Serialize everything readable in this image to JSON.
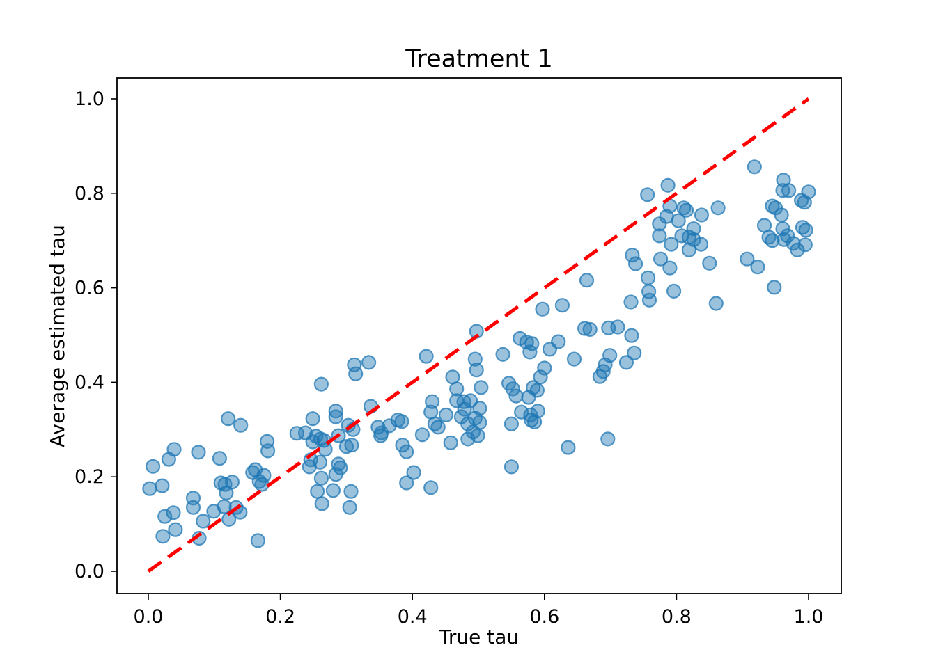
{
  "chart_data": {
    "type": "scatter",
    "title": "Treatment 1",
    "xlabel": "True tau",
    "ylabel": "Average estimated tau",
    "xlim": [
      -0.05,
      1.05
    ],
    "ylim": [
      -0.05,
      1.045
    ],
    "grid": false,
    "legend": "none",
    "x_ticks": [
      0.0,
      0.2,
      0.4,
      0.6,
      0.8,
      1.0
    ],
    "x_tick_labels": [
      "0.0",
      "0.2",
      "0.4",
      "0.6",
      "0.8",
      "1.0"
    ],
    "y_ticks": [
      0.0,
      0.2,
      0.4,
      0.6,
      0.8,
      1.0
    ],
    "y_tick_labels": [
      "0.0",
      "0.2",
      "0.4",
      "0.6",
      "0.8",
      "1.0"
    ],
    "reference_line": {
      "name": "identity-line",
      "x": [
        0,
        1
      ],
      "y": [
        0,
        1
      ],
      "style": "dashed",
      "color": "#ff0000"
    },
    "series": [
      {
        "name": "average-estimated-tau",
        "marker": "circle",
        "color": "#1f77b4",
        "alpha": 0.5,
        "points": [
          [
            0.121,
            0.323
          ],
          [
            0.14,
            0.309
          ],
          [
            0.007,
            0.222
          ],
          [
            0.039,
            0.258
          ],
          [
            0.031,
            0.237
          ],
          [
            0.076,
            0.252
          ],
          [
            0.108,
            0.239
          ],
          [
            0.18,
            0.275
          ],
          [
            0.181,
            0.255
          ],
          [
            0.158,
            0.209
          ],
          [
            0.162,
            0.215
          ],
          [
            0.175,
            0.203
          ],
          [
            0.002,
            0.175
          ],
          [
            0.021,
            0.181
          ],
          [
            0.11,
            0.187
          ],
          [
            0.116,
            0.184
          ],
          [
            0.127,
            0.189
          ],
          [
            0.118,
            0.166
          ],
          [
            0.172,
            0.184
          ],
          [
            0.168,
            0.19
          ],
          [
            0.068,
            0.155
          ],
          [
            0.068,
            0.135
          ],
          [
            0.099,
            0.127
          ],
          [
            0.115,
            0.137
          ],
          [
            0.133,
            0.135
          ],
          [
            0.139,
            0.125
          ],
          [
            0.122,
            0.11
          ],
          [
            0.025,
            0.116
          ],
          [
            0.038,
            0.124
          ],
          [
            0.083,
            0.106
          ],
          [
            0.041,
            0.088
          ],
          [
            0.022,
            0.074
          ],
          [
            0.077,
            0.07
          ],
          [
            0.166,
            0.065
          ],
          [
            0.249,
            0.323
          ],
          [
            0.284,
            0.327
          ],
          [
            0.303,
            0.309
          ],
          [
            0.31,
            0.3
          ],
          [
            0.225,
            0.292
          ],
          [
            0.238,
            0.293
          ],
          [
            0.254,
            0.286
          ],
          [
            0.261,
            0.28
          ],
          [
            0.266,
            0.277
          ],
          [
            0.249,
            0.274
          ],
          [
            0.288,
            0.287
          ],
          [
            0.3,
            0.264
          ],
          [
            0.308,
            0.267
          ],
          [
            0.268,
            0.258
          ],
          [
            0.246,
            0.236
          ],
          [
            0.26,
            0.231
          ],
          [
            0.244,
            0.221
          ],
          [
            0.288,
            0.227
          ],
          [
            0.291,
            0.219
          ],
          [
            0.284,
            0.205
          ],
          [
            0.262,
            0.197
          ],
          [
            0.256,
            0.169
          ],
          [
            0.28,
            0.171
          ],
          [
            0.307,
            0.169
          ],
          [
            0.263,
            0.143
          ],
          [
            0.305,
            0.135
          ],
          [
            0.348,
            0.305
          ],
          [
            0.353,
            0.293
          ],
          [
            0.352,
            0.287
          ],
          [
            0.365,
            0.308
          ],
          [
            0.378,
            0.32
          ],
          [
            0.384,
            0.317
          ],
          [
            0.415,
            0.289
          ],
          [
            0.385,
            0.267
          ],
          [
            0.391,
            0.253
          ],
          [
            0.434,
            0.312
          ],
          [
            0.439,
            0.305
          ],
          [
            0.458,
            0.272
          ],
          [
            0.402,
            0.209
          ],
          [
            0.391,
            0.187
          ],
          [
            0.428,
            0.177
          ],
          [
            0.451,
            0.331
          ],
          [
            0.467,
            0.361
          ],
          [
            0.478,
            0.359
          ],
          [
            0.488,
            0.361
          ],
          [
            0.479,
            0.343
          ],
          [
            0.502,
            0.345
          ],
          [
            0.474,
            0.327
          ],
          [
            0.495,
            0.324
          ],
          [
            0.502,
            0.315
          ],
          [
            0.484,
            0.312
          ],
          [
            0.492,
            0.295
          ],
          [
            0.499,
            0.287
          ],
          [
            0.484,
            0.28
          ],
          [
            0.55,
            0.312
          ],
          [
            0.58,
            0.32
          ],
          [
            0.585,
            0.316
          ],
          [
            0.636,
            0.262
          ],
          [
            0.696,
            0.28
          ],
          [
            0.55,
            0.221
          ],
          [
            0.262,
            0.396
          ],
          [
            0.312,
            0.437
          ],
          [
            0.314,
            0.418
          ],
          [
            0.334,
            0.442
          ],
          [
            0.284,
            0.339
          ],
          [
            0.337,
            0.349
          ],
          [
            0.421,
            0.455
          ],
          [
            0.43,
            0.359
          ],
          [
            0.428,
            0.337
          ],
          [
            0.461,
            0.411
          ],
          [
            0.467,
            0.386
          ],
          [
            0.497,
            0.508
          ],
          [
            0.495,
            0.449
          ],
          [
            0.497,
            0.426
          ],
          [
            0.733,
            0.669
          ],
          [
            0.738,
            0.651
          ],
          [
            0.757,
            0.621
          ],
          [
            0.758,
            0.592
          ],
          [
            0.759,
            0.574
          ],
          [
            0.731,
            0.57
          ],
          [
            0.664,
            0.616
          ],
          [
            0.597,
            0.555
          ],
          [
            0.627,
            0.563
          ],
          [
            0.661,
            0.514
          ],
          [
            0.669,
            0.512
          ],
          [
            0.697,
            0.515
          ],
          [
            0.711,
            0.517
          ],
          [
            0.732,
            0.499
          ],
          [
            0.563,
            0.493
          ],
          [
            0.573,
            0.485
          ],
          [
            0.581,
            0.482
          ],
          [
            0.578,
            0.464
          ],
          [
            0.537,
            0.459
          ],
          [
            0.608,
            0.47
          ],
          [
            0.621,
            0.486
          ],
          [
            0.645,
            0.449
          ],
          [
            0.699,
            0.457
          ],
          [
            0.692,
            0.437
          ],
          [
            0.689,
            0.423
          ],
          [
            0.684,
            0.412
          ],
          [
            0.724,
            0.442
          ],
          [
            0.736,
            0.462
          ],
          [
            0.6,
            0.43
          ],
          [
            0.594,
            0.411
          ],
          [
            0.504,
            0.389
          ],
          [
            0.546,
            0.398
          ],
          [
            0.552,
            0.386
          ],
          [
            0.557,
            0.371
          ],
          [
            0.583,
            0.389
          ],
          [
            0.589,
            0.383
          ],
          [
            0.576,
            0.368
          ],
          [
            0.565,
            0.337
          ],
          [
            0.579,
            0.331
          ],
          [
            0.59,
            0.339
          ],
          [
            0.776,
            0.661
          ],
          [
            0.79,
            0.642
          ],
          [
            0.796,
            0.593
          ],
          [
            0.85,
            0.652
          ],
          [
            0.907,
            0.661
          ],
          [
            0.923,
            0.644
          ],
          [
            0.948,
            0.601
          ],
          [
            0.86,
            0.567
          ],
          [
            0.756,
            0.797
          ],
          [
            0.918,
            0.856
          ],
          [
            0.787,
            0.817
          ],
          [
            0.962,
            0.828
          ],
          [
            0.961,
            0.806
          ],
          [
            0.97,
            0.806
          ],
          [
            1.0,
            0.803
          ],
          [
            0.989,
            0.785
          ],
          [
            0.994,
            0.781
          ],
          [
            0.79,
            0.773
          ],
          [
            0.945,
            0.773
          ],
          [
            0.95,
            0.769
          ],
          [
            0.959,
            0.754
          ],
          [
            0.811,
            0.769
          ],
          [
            0.815,
            0.764
          ],
          [
            0.785,
            0.751
          ],
          [
            0.803,
            0.742
          ],
          [
            0.838,
            0.754
          ],
          [
            0.863,
            0.769
          ],
          [
            0.774,
            0.735
          ],
          [
            0.826,
            0.725
          ],
          [
            0.774,
            0.71
          ],
          [
            0.808,
            0.71
          ],
          [
            0.819,
            0.707
          ],
          [
            0.826,
            0.702
          ],
          [
            0.792,
            0.692
          ],
          [
            0.837,
            0.692
          ],
          [
            0.819,
            0.68
          ],
          [
            0.933,
            0.732
          ],
          [
            0.961,
            0.725
          ],
          [
            0.991,
            0.728
          ],
          [
            0.996,
            0.722
          ],
          [
            0.94,
            0.707
          ],
          [
            0.945,
            0.7
          ],
          [
            0.963,
            0.702
          ],
          [
            0.968,
            0.71
          ],
          [
            0.977,
            0.694
          ],
          [
            0.995,
            0.691
          ],
          [
            0.983,
            0.68
          ]
        ]
      }
    ],
    "colors": {
      "point_fill": "#1f77b4",
      "reference_line": "#ff0000",
      "axes": "#000000",
      "background": "#ffffff"
    }
  }
}
